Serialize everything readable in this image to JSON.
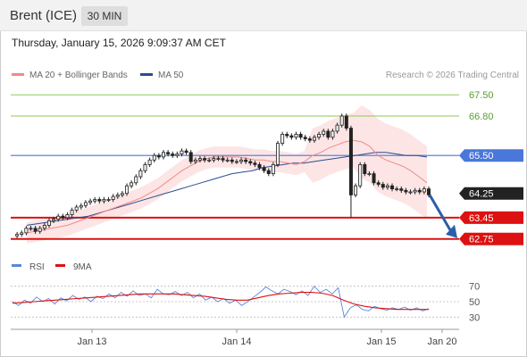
{
  "header": {
    "instrument": "Brent (ICE)",
    "interval": "30 MIN"
  },
  "timestamp": "Thursday, January 15, 2026 9:09:37 AM CET",
  "legend": {
    "ma20_bb": "MA 20 + Bollinger Bands",
    "ma50": "MA 50",
    "ma20_color": "#f08a8a",
    "ma50_color": "#2a4d8f"
  },
  "credit": "Research © 2026 Trading Central",
  "colors": {
    "resistance": "#8dc95a",
    "support": "#dd1111",
    "pivot": "#4a77d9",
    "current": "#222222",
    "bollinger_fill": "#fde5e5",
    "arrow": "#2a5fa8",
    "up_candle": "#f2f2f2",
    "down_candle": "#222222"
  },
  "chart_data": [
    {
      "type": "line",
      "title": "",
      "x_ticks": [
        "Jan 13",
        "Jan 14",
        "Jan 15",
        "Jan 20"
      ],
      "ylim": [
        62.3,
        67.8
      ],
      "levels": [
        {
          "label": "67.50",
          "value": 67.5,
          "kind": "resistance"
        },
        {
          "label": "66.80",
          "value": 66.8,
          "kind": "resistance"
        },
        {
          "label": "65.50",
          "value": 65.5,
          "kind": "pivot"
        },
        {
          "label": "64.25",
          "value": 64.25,
          "kind": "current"
        },
        {
          "label": "63.45",
          "value": 63.45,
          "kind": "support"
        },
        {
          "label": "62.75",
          "value": 62.75,
          "kind": "support"
        }
      ],
      "projection": {
        "from": 64.2,
        "to": 62.75
      },
      "series": [
        {
          "name": "Price",
          "values": [
            62.85,
            62.9,
            62.95,
            63.1,
            63.1,
            63.0,
            63.1,
            63.2,
            63.35,
            63.4,
            63.5,
            63.45,
            63.55,
            63.7,
            63.8,
            63.85,
            63.95,
            64.0,
            64.05,
            64.0,
            64.05,
            64.05,
            64.15,
            64.2,
            64.25,
            64.5,
            64.6,
            64.8,
            65.0,
            65.2,
            65.35,
            65.5,
            65.45,
            65.6,
            65.55,
            65.5,
            65.55,
            65.65,
            65.6,
            65.3,
            65.35,
            65.4,
            65.35,
            65.35,
            65.4,
            65.4,
            65.35,
            65.35,
            65.3,
            65.3,
            65.35,
            65.3,
            65.25,
            65.2,
            65.1,
            65.0,
            64.9,
            65.2,
            65.9,
            66.2,
            66.15,
            66.1,
            66.2,
            66.1,
            66.05,
            66.0,
            66.1,
            66.2,
            66.3,
            66.1,
            66.3,
            66.5,
            66.8,
            66.4,
            64.2,
            64.5,
            65.2,
            64.9,
            64.9,
            64.6,
            64.55,
            64.45,
            64.5,
            64.4,
            64.4,
            64.35,
            64.3,
            64.3,
            64.35,
            64.3,
            64.4,
            64.2
          ]
        },
        {
          "name": "MA 20",
          "values": [
            62.95,
            63.0,
            63.05,
            63.1,
            63.15,
            63.2,
            63.3,
            63.4,
            63.5,
            63.6,
            63.7,
            63.8,
            63.9,
            64.0,
            64.1,
            64.25,
            64.4,
            64.6,
            64.8,
            65.0,
            65.15,
            65.3,
            65.4,
            65.45,
            65.45,
            65.45,
            65.45,
            65.4,
            65.35,
            65.35,
            65.3,
            65.3,
            65.25,
            65.2,
            65.3,
            65.5,
            65.6,
            65.75,
            65.85,
            65.95,
            66.0,
            65.95,
            65.8,
            65.5,
            65.35,
            65.25,
            65.15,
            65.0,
            64.8,
            64.6
          ]
        },
        {
          "name": "MA 50",
          "values": [
            63.2,
            63.25,
            63.3,
            63.35,
            63.4,
            63.45,
            63.5,
            63.6,
            63.7,
            63.8,
            63.9,
            64.0,
            64.1,
            64.2,
            64.3,
            64.4,
            64.5,
            64.6,
            64.7,
            64.8,
            64.9,
            64.95,
            65.0,
            65.1,
            65.15,
            65.2,
            65.25,
            65.25,
            65.3,
            65.35,
            65.4,
            65.45,
            65.5,
            65.55,
            65.6,
            65.6,
            65.55,
            65.5,
            65.5,
            65.45
          ]
        }
      ]
    },
    {
      "type": "line",
      "title": "",
      "legend": [
        "RSI",
        "9MA"
      ],
      "ylim": [
        20,
        80
      ],
      "y_ticks": [
        "70",
        "50",
        "30"
      ],
      "series": [
        {
          "name": "RSI",
          "color": "#5b86d8",
          "values": [
            50,
            45,
            52,
            48,
            56,
            50,
            54,
            47,
            55,
            51,
            58,
            53,
            56,
            50,
            57,
            54,
            60,
            55,
            62,
            57,
            64,
            58,
            60,
            55,
            66,
            60,
            59,
            63,
            58,
            62,
            55,
            60,
            52,
            56,
            50,
            54,
            48,
            52,
            45,
            50,
            56,
            62,
            69,
            64,
            60,
            66,
            63,
            59,
            64,
            58,
            70,
            62,
            66,
            60,
            68,
            30,
            42,
            46,
            40,
            38,
            44,
            41,
            39,
            42,
            40,
            43,
            39,
            42,
            38,
            41
          ]
        },
        {
          "name": "9MA",
          "color": "#dd1111",
          "values": [
            48,
            49,
            50,
            51,
            52,
            53,
            54,
            55,
            56,
            57,
            58,
            59,
            60,
            60,
            60,
            60,
            59,
            58,
            57,
            55,
            53,
            52,
            52,
            55,
            58,
            60,
            61,
            62,
            62,
            61,
            58,
            52,
            47,
            44,
            42,
            41,
            40,
            40,
            40,
            40
          ]
        }
      ]
    }
  ]
}
